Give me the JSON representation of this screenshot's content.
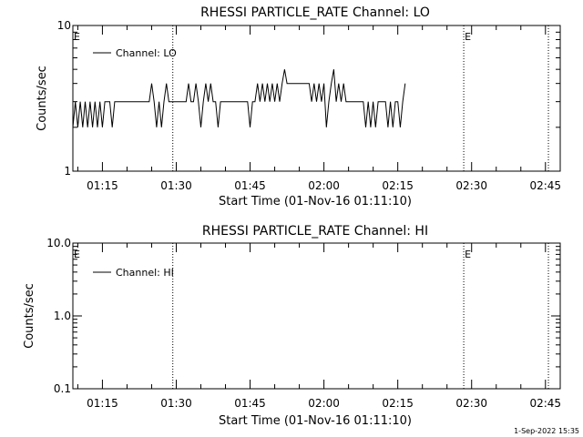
{
  "footer_timestamp": "1-Sep-2022 15:35",
  "chart_data": [
    {
      "type": "line",
      "title": "RHESSI PARTICLE_RATE Channel: LO",
      "ylabel": "Counts/sec",
      "xlabel": "Start Time (01-Nov-16 01:11:10)",
      "yscale": "log",
      "ylim": [
        1,
        10
      ],
      "y_ticks": [
        1,
        10
      ],
      "y_tick_labels": [
        "1",
        "10"
      ],
      "x_range_minutes": [
        "01:09",
        "02:48"
      ],
      "x_ticks": [
        "01:15",
        "01:30",
        "01:45",
        "02:00",
        "02:15",
        "02:30",
        "02:45"
      ],
      "legend": {
        "label": "Channel: LO",
        "position": "top-left"
      },
      "event_markers": [
        {
          "label": "E",
          "time": "01:09"
        },
        {
          "label": "",
          "time": "01:29.3"
        },
        {
          "label": "E",
          "time": "02:28.4"
        },
        {
          "label": "",
          "time": "02:45.6"
        }
      ],
      "series": [
        {
          "name": "Channel: LO",
          "start": "01:09",
          "step_seconds": 30,
          "values": [
            2,
            3,
            2,
            3,
            2,
            3,
            2,
            3,
            2,
            3,
            2,
            3,
            2,
            3,
            3,
            3,
            2,
            3,
            3,
            3,
            3,
            3,
            3,
            3,
            3,
            3,
            3,
            3,
            3,
            3,
            3,
            3,
            4,
            3,
            2,
            3,
            2,
            3,
            4,
            3,
            3,
            3,
            3,
            3,
            3,
            3,
            3,
            4,
            3,
            3,
            4,
            3,
            2,
            3,
            4,
            3,
            4,
            3,
            3,
            2,
            3,
            3,
            3,
            3,
            3,
            3,
            3,
            3,
            3,
            3,
            3,
            3,
            2,
            3,
            3,
            4,
            3,
            4,
            3,
            4,
            3,
            4,
            3,
            4,
            3,
            4,
            5,
            4,
            4,
            4,
            4,
            4,
            4,
            4,
            4,
            4,
            4,
            3,
            4,
            3,
            4,
            3,
            4,
            2,
            3,
            4,
            5,
            3,
            4,
            3,
            4,
            3,
            3,
            3,
            3,
            3,
            3,
            3,
            3,
            2,
            3,
            2,
            3,
            2,
            3,
            3,
            3,
            3,
            2,
            3,
            2,
            3,
            3,
            2,
            3,
            4
          ],
          "color": "#000000"
        }
      ]
    },
    {
      "type": "line",
      "title": "RHESSI PARTICLE_RATE Channel: HI",
      "ylabel": "Counts/sec",
      "xlabel": "Start Time (01-Nov-16 01:11:10)",
      "yscale": "log",
      "ylim": [
        0.1,
        10
      ],
      "y_ticks": [
        0.1,
        1,
        10
      ],
      "y_tick_labels": [
        "0.1",
        "1.0",
        "10.0"
      ],
      "x_range_minutes": [
        "01:09",
        "02:48"
      ],
      "x_ticks": [
        "01:15",
        "01:30",
        "01:45",
        "02:00",
        "02:15",
        "02:30",
        "02:45"
      ],
      "legend": {
        "label": "Channel: HI",
        "position": "top-left"
      },
      "event_markers": [
        {
          "label": "E",
          "time": "01:09"
        },
        {
          "label": "",
          "time": "01:29.3"
        },
        {
          "label": "E",
          "time": "02:28.4"
        },
        {
          "label": "",
          "time": "02:45.6"
        }
      ],
      "series": [
        {
          "name": "Channel: HI",
          "values": [],
          "color": "#000000"
        }
      ]
    }
  ]
}
